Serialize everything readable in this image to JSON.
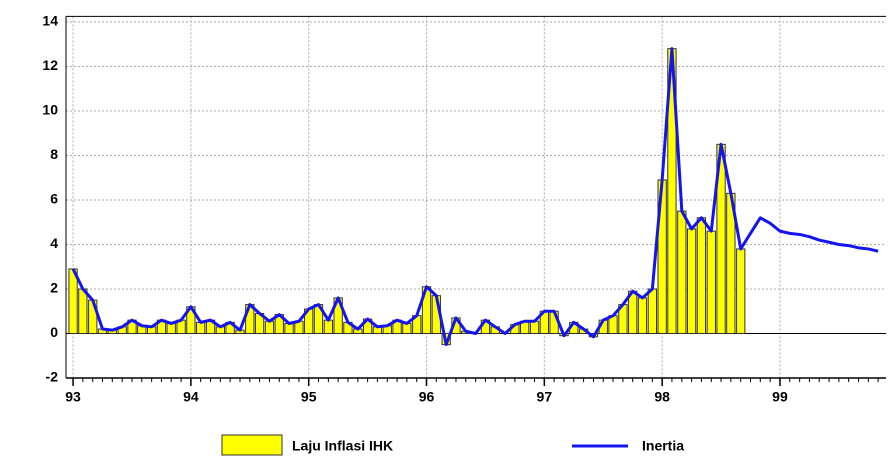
{
  "chart_data": {
    "type": "bar-line",
    "x": [
      93,
      93.083,
      93.167,
      93.25,
      93.333,
      93.417,
      93.5,
      93.583,
      93.667,
      93.75,
      93.833,
      93.917,
      94,
      94.083,
      94.167,
      94.25,
      94.333,
      94.417,
      94.5,
      94.583,
      94.667,
      94.75,
      94.833,
      94.917,
      95,
      95.083,
      95.167,
      95.25,
      95.333,
      95.417,
      95.5,
      95.583,
      95.667,
      95.75,
      95.833,
      95.917,
      96,
      96.083,
      96.167,
      96.25,
      96.333,
      96.417,
      96.5,
      96.583,
      96.667,
      96.75,
      96.833,
      96.917,
      97,
      97.083,
      97.167,
      97.25,
      97.333,
      97.417,
      97.5,
      97.583,
      97.667,
      97.75,
      97.833,
      97.917,
      98,
      98.083,
      98.167,
      98.25,
      98.333,
      98.417,
      98.5,
      98.583,
      98.667,
      98.75,
      98.833,
      98.917,
      99,
      99.083,
      99.167,
      99.25,
      99.333,
      99.417,
      99.5,
      99.583,
      99.667,
      99.75,
      99.833
    ],
    "series": [
      {
        "name": "Laju Inflasi IHK",
        "kind": "bar",
        "color": "#ffff00",
        "values": [
          2.9,
          2.0,
          1.5,
          0.2,
          0.15,
          0.3,
          0.6,
          0.35,
          0.3,
          0.6,
          0.45,
          0.6,
          1.2,
          0.5,
          0.6,
          0.3,
          0.5,
          0.15,
          1.3,
          0.9,
          0.55,
          0.85,
          0.45,
          0.55,
          1.1,
          1.3,
          0.6,
          1.6,
          0.5,
          0.2,
          0.65,
          0.3,
          0.35,
          0.6,
          0.45,
          0.8,
          2.1,
          1.7,
          -0.5,
          0.7,
          0.1,
          0.0,
          0.6,
          0.3,
          0.0,
          0.4,
          0.55,
          0.55,
          1.0,
          1.0,
          -0.1,
          0.5,
          0.2,
          -0.15,
          0.6,
          0.8,
          1.3,
          1.9,
          1.6,
          2.0,
          6.9,
          12.8,
          5.5,
          4.7,
          5.2,
          4.6,
          8.5,
          6.3,
          3.8,
          null,
          null,
          null,
          null,
          null,
          null,
          null,
          null,
          null,
          null,
          null,
          null,
          null,
          null
        ]
      },
      {
        "name": "Inertia",
        "kind": "line",
        "color": "#1414f0",
        "values": [
          2.9,
          2.0,
          1.5,
          0.2,
          0.15,
          0.3,
          0.6,
          0.35,
          0.3,
          0.6,
          0.45,
          0.6,
          1.2,
          0.5,
          0.6,
          0.3,
          0.5,
          0.15,
          1.3,
          0.9,
          0.55,
          0.85,
          0.45,
          0.55,
          1.1,
          1.3,
          0.6,
          1.6,
          0.5,
          0.2,
          0.65,
          0.3,
          0.35,
          0.6,
          0.45,
          0.8,
          2.1,
          1.7,
          -0.5,
          0.7,
          0.1,
          0.0,
          0.6,
          0.3,
          0.0,
          0.4,
          0.55,
          0.55,
          1.0,
          1.0,
          -0.1,
          0.5,
          0.2,
          -0.15,
          0.6,
          0.8,
          1.3,
          1.9,
          1.6,
          2.0,
          6.9,
          12.8,
          5.5,
          4.7,
          5.2,
          4.6,
          8.5,
          6.3,
          3.8,
          4.5,
          5.2,
          4.95,
          4.6,
          4.5,
          4.45,
          4.35,
          4.2,
          4.1,
          4.0,
          3.95,
          3.85,
          3.8,
          3.7
        ]
      }
    ],
    "xlim": [
      92.94,
      99.9
    ],
    "xticks": [
      93,
      94,
      95,
      96,
      97,
      98,
      99
    ],
    "ylim": [
      -2,
      14.25
    ],
    "yticks": [
      -2,
      0,
      2,
      4,
      6,
      8,
      10,
      12,
      14
    ],
    "grid": true
  }
}
